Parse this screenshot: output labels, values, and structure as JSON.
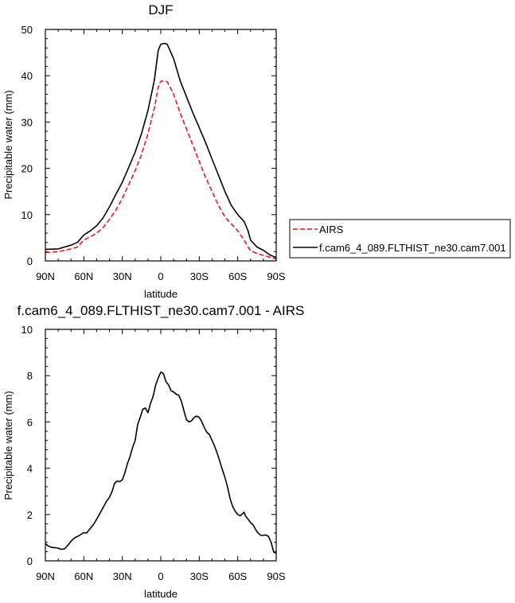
{
  "chart_data": [
    {
      "type": "line",
      "title": "DJF",
      "xlabel": "latitude",
      "ylabel": "Precipitable water (mm)",
      "xlim": [
        -90,
        90
      ],
      "ylim": [
        0,
        50
      ],
      "x_ticks": [
        -90,
        -60,
        -30,
        0,
        30,
        60,
        90
      ],
      "x_tick_labels": [
        "90N",
        "60N",
        "30N",
        "0",
        "30S",
        "60S",
        "90S"
      ],
      "y_ticks": [
        0,
        10,
        20,
        30,
        40,
        50
      ],
      "y_tick_labels": [
        "0",
        "10",
        "20",
        "30",
        "40",
        "50"
      ],
      "legend_position": "right",
      "series": [
        {
          "name": "AIRS",
          "style": "dashed",
          "color": "#e8191c",
          "x": [
            -90,
            -80,
            -75,
            -70,
            -65,
            -60,
            -55,
            -50,
            -45,
            -40,
            -35,
            -30,
            -25,
            -20,
            -15,
            -10,
            -5,
            -2,
            0,
            3,
            5,
            10,
            15,
            20,
            25,
            30,
            35,
            40,
            45,
            50,
            55,
            60,
            65,
            68,
            70,
            75,
            80,
            85,
            90
          ],
          "y": [
            1.8,
            2.0,
            2.3,
            2.6,
            3.0,
            4.5,
            5.2,
            6.0,
            7.2,
            9.0,
            11.0,
            13.5,
            16.5,
            19.5,
            23.0,
            27.5,
            33.0,
            37.5,
            38.8,
            38.9,
            38.7,
            36.0,
            32.0,
            28.5,
            25.0,
            21.5,
            18.0,
            15.0,
            12.0,
            9.5,
            8.0,
            6.5,
            4.5,
            3.0,
            2.2,
            1.6,
            1.2,
            0.8,
            0.4
          ]
        },
        {
          "name": "f.cam6_4_089.FLTHIST_ne30.cam7.001",
          "style": "solid",
          "color": "#000000",
          "x": [
            -90,
            -80,
            -75,
            -70,
            -65,
            -60,
            -55,
            -50,
            -45,
            -40,
            -35,
            -30,
            -25,
            -20,
            -15,
            -10,
            -5,
            -2,
            0,
            3,
            5,
            10,
            15,
            20,
            25,
            30,
            35,
            40,
            45,
            50,
            55,
            60,
            65,
            68,
            70,
            75,
            80,
            85,
            90
          ],
          "y": [
            2.5,
            2.6,
            3.0,
            3.4,
            4.0,
            5.6,
            6.5,
            7.6,
            9.3,
            11.7,
            14.4,
            17.0,
            20.2,
            23.5,
            27.5,
            32.5,
            39.0,
            45.5,
            46.8,
            47.0,
            46.8,
            43.7,
            39.0,
            35.5,
            32.0,
            28.8,
            25.5,
            22.0,
            18.5,
            15.0,
            12.0,
            10.0,
            8.5,
            6.5,
            4.5,
            3.0,
            2.3,
            1.3,
            0.7
          ]
        }
      ]
    },
    {
      "type": "line",
      "title": "f.cam6_4_089.FLTHIST_ne30.cam7.001 - AIRS",
      "xlabel": "latitude",
      "ylabel": "Precipitable water (mm)",
      "xlim": [
        -90,
        90
      ],
      "ylim": [
        0,
        10
      ],
      "x_ticks": [
        -90,
        -60,
        -30,
        0,
        30,
        60,
        90
      ],
      "x_tick_labels": [
        "90N",
        "60N",
        "30N",
        "0",
        "30S",
        "60S",
        "90S"
      ],
      "y_ticks": [
        0,
        2,
        4,
        6,
        8,
        10
      ],
      "y_tick_labels": [
        "0",
        "2",
        "4",
        "6",
        "8",
        "10"
      ],
      "series": [
        {
          "style": "solid",
          "color": "#000000",
          "x": [
            -90,
            -88,
            -85,
            -80,
            -78,
            -75,
            -72,
            -70,
            -67,
            -65,
            -62,
            -60,
            -58,
            -55,
            -52,
            -50,
            -48,
            -45,
            -42,
            -40,
            -38,
            -36,
            -34,
            -32,
            -30,
            -28,
            -26,
            -24,
            -22,
            -20,
            -18,
            -16,
            -14,
            -12,
            -10,
            -8,
            -6,
            -4,
            -2,
            0,
            2,
            4,
            6,
            8,
            10,
            12,
            14,
            16,
            18,
            20,
            22,
            24,
            26,
            28,
            30,
            32,
            34,
            36,
            38,
            40,
            42,
            44,
            46,
            48,
            50,
            52,
            54,
            56,
            58,
            60,
            62,
            64,
            65,
            66,
            68,
            70,
            72,
            74,
            76,
            78,
            80,
            82,
            84,
            86,
            88,
            90
          ],
          "y": [
            0.75,
            0.65,
            0.58,
            0.55,
            0.5,
            0.52,
            0.7,
            0.85,
            1.0,
            1.05,
            1.15,
            1.22,
            1.2,
            1.4,
            1.6,
            1.8,
            2.0,
            2.3,
            2.6,
            2.75,
            3.0,
            3.35,
            3.45,
            3.42,
            3.5,
            3.8,
            4.2,
            4.5,
            4.9,
            5.2,
            5.9,
            6.2,
            6.55,
            6.6,
            6.4,
            6.8,
            7.1,
            7.6,
            7.9,
            8.15,
            8.1,
            7.75,
            7.6,
            7.35,
            7.3,
            7.2,
            7.15,
            6.9,
            6.5,
            6.1,
            6.0,
            6.05,
            6.2,
            6.25,
            6.2,
            6.0,
            5.75,
            5.55,
            5.45,
            5.2,
            4.95,
            4.65,
            4.3,
            3.95,
            3.6,
            3.2,
            2.7,
            2.35,
            2.15,
            2.0,
            1.95,
            2.05,
            2.1,
            1.95,
            1.8,
            1.65,
            1.55,
            1.35,
            1.2,
            1.1,
            1.1,
            1.12,
            1.05,
            0.8,
            0.38,
            0.33
          ]
        }
      ]
    }
  ]
}
